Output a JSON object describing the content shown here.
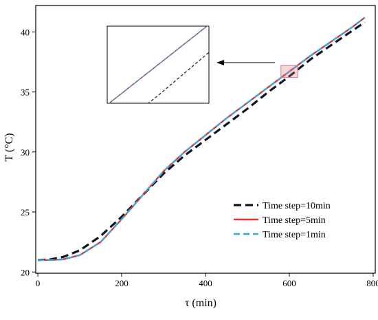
{
  "chart_data": {
    "type": "line",
    "title": "",
    "xlabel": "τ (min)",
    "ylabel": "T (°C)",
    "xlim": [
      -5,
      805
    ],
    "ylim": [
      19.9,
      42.2
    ],
    "xticks": [
      0,
      200,
      400,
      600,
      800
    ],
    "yticks": [
      20,
      25,
      30,
      35,
      40
    ],
    "grid": false,
    "legend_position": "bottom-right",
    "inset": {
      "description": "magnified view of the region around τ ≈ 600 min",
      "x_range": [
        580,
        620
      ],
      "y_range": [
        36.2,
        37.2
      ]
    },
    "series": [
      {
        "name": "Time step=10min",
        "color": "#0d1424",
        "style": "dashed",
        "x": [
          0,
          30,
          60,
          100,
          150,
          200,
          250,
          300,
          350,
          400,
          450,
          500,
          550,
          600,
          650,
          700,
          750,
          780
        ],
        "y": [
          21.0,
          21.05,
          21.25,
          21.8,
          23.0,
          24.6,
          26.4,
          28.2,
          29.7,
          31.0,
          32.3,
          33.6,
          35.0,
          36.3,
          37.7,
          38.9,
          40.1,
          40.8
        ]
      },
      {
        "name": "Time step=5min",
        "color": "#e33438",
        "style": "solid",
        "x": [
          0,
          30,
          60,
          100,
          150,
          200,
          250,
          300,
          350,
          400,
          450,
          500,
          550,
          600,
          650,
          700,
          750,
          780
        ],
        "y": [
          21.0,
          21.0,
          21.05,
          21.4,
          22.5,
          24.4,
          26.4,
          28.4,
          30.0,
          31.4,
          32.8,
          34.1,
          35.4,
          36.7,
          38.0,
          39.2,
          40.4,
          41.2
        ]
      },
      {
        "name": "Time step=1min",
        "color": "#3aa8de",
        "style": "dashed",
        "x": [
          0,
          30,
          60,
          100,
          150,
          200,
          250,
          300,
          350,
          400,
          450,
          500,
          550,
          600,
          650,
          700,
          750,
          780
        ],
        "y": [
          21.0,
          21.0,
          21.05,
          21.4,
          22.5,
          24.4,
          26.4,
          28.4,
          30.0,
          31.4,
          32.8,
          34.1,
          35.4,
          36.7,
          38.0,
          39.2,
          40.4,
          41.2
        ]
      }
    ]
  }
}
